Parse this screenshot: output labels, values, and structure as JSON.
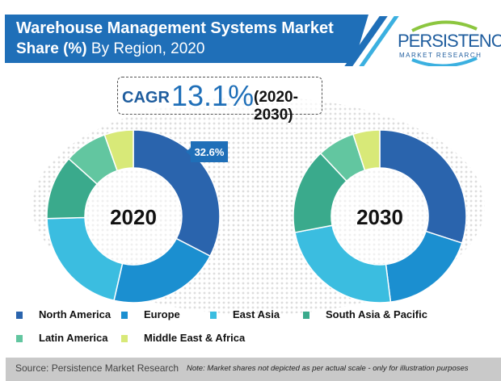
{
  "header": {
    "title_line1": "Warehouse Management Systems Market",
    "title_bold2": "Share (%)",
    "title_rest2": "By Region, 2020"
  },
  "logo": {
    "name": "PERSISTENCE",
    "sub": "MARKET RESEARCH"
  },
  "cagr": {
    "label": "CAGR",
    "value": "13.1%",
    "period": "(2020-2030)"
  },
  "chart_data": {
    "type": "pie",
    "title": "Warehouse Management Systems Market Share (%) By Region, 2020",
    "categories": [
      "North America",
      "Europe",
      "East Asia",
      "South Asia & Pacific",
      "Latin America",
      "Middle East & Africa"
    ],
    "colors": [
      "#2a64ad",
      "#1b8fd0",
      "#3bbde0",
      "#3aaa8c",
      "#62c6a0",
      "#d8e978"
    ],
    "series": [
      {
        "name": "2020",
        "values": [
          32.6,
          21,
          21,
          12,
          8,
          5.4
        ],
        "label": "32.6%"
      },
      {
        "name": "2030",
        "values": [
          30,
          18,
          24,
          16,
          7,
          5
        ]
      }
    ],
    "annotations": [
      "32.6%"
    ],
    "legend": "bottom"
  },
  "footer": {
    "source": "Source: Persistence Market Research",
    "note": "Note: Market shares not depicted as per actual scale - only for illustration purposes"
  }
}
